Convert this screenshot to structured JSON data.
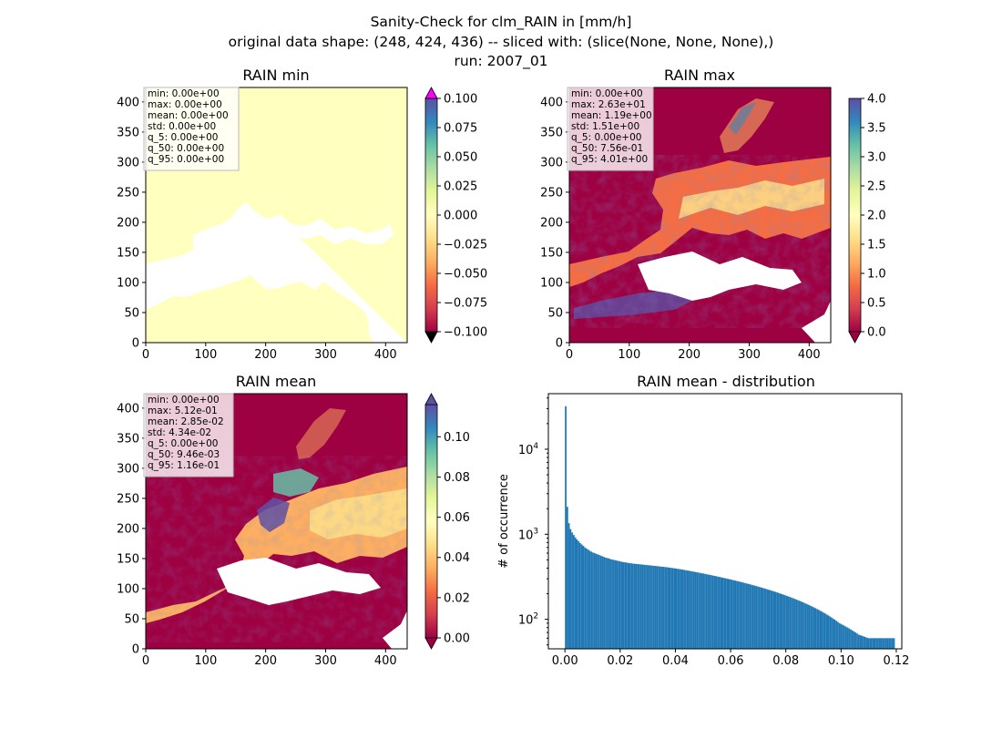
{
  "figure": {
    "title_lines": [
      "Sanity-Check for clm_RAIN in [mm/h]",
      "original data shape: (248, 424, 436) -- sliced with: (slice(None, None, None),)",
      "run: 2007_01"
    ]
  },
  "colors": {
    "land_min": "#ffffbf",
    "hist_bar": "#1f77b4",
    "colorbar_over": "#ff00ff",
    "colorbar_under": "#000000",
    "spectral": [
      "#9e0142",
      "#d53e4f",
      "#f46d43",
      "#fdae61",
      "#fee08b",
      "#ffffbf",
      "#e6f598",
      "#abdda4",
      "#66c2a5",
      "#3288bd",
      "#5e4fa2"
    ]
  },
  "chart_data": [
    {
      "type": "heatmap",
      "title": "RAIN min",
      "xlim": [
        0,
        436
      ],
      "ylim": [
        0,
        424
      ],
      "xticks": [
        "0",
        "100",
        "200",
        "300",
        "400"
      ],
      "yticks": [
        "0",
        "50",
        "100",
        "150",
        "200",
        "250",
        "300",
        "350",
        "400"
      ],
      "colorbar": {
        "min": -0.1,
        "max": 0.1,
        "extend": "both",
        "ticks": [
          "−0.100",
          "−0.075",
          "−0.050",
          "−0.025",
          "0.000",
          "0.025",
          "0.050",
          "0.075",
          "0.100"
        ]
      },
      "stats": [
        "min: 0.00e+00",
        "max: 0.00e+00",
        "mean: 0.00e+00",
        "std: 0.00e+00",
        "q_5: 0.00e+00",
        "q_50: 0.00e+00",
        "q_95: 0.00e+00"
      ]
    },
    {
      "type": "heatmap",
      "title": "RAIN max",
      "xlim": [
        0,
        436
      ],
      "ylim": [
        0,
        424
      ],
      "xticks": [
        "0",
        "100",
        "200",
        "300",
        "400"
      ],
      "yticks": [
        "0",
        "50",
        "100",
        "150",
        "200",
        "250",
        "300",
        "350",
        "400"
      ],
      "colorbar": {
        "min": 0.0,
        "max": 4.0,
        "extend": "min",
        "ticks": [
          "0.0",
          "0.5",
          "1.0",
          "1.5",
          "2.0",
          "2.5",
          "3.0",
          "3.5",
          "4.0"
        ]
      },
      "stats": [
        "min: 0.00e+00",
        "max: 2.63e+01",
        "mean: 1.19e+00",
        "std: 1.51e+00",
        "q_5: 0.00e+00",
        "q_50: 7.56e-01",
        "q_95: 4.01e+00"
      ]
    },
    {
      "type": "heatmap",
      "title": "RAIN mean",
      "xlim": [
        0,
        436
      ],
      "ylim": [
        0,
        424
      ],
      "xticks": [
        "0",
        "100",
        "200",
        "300",
        "400"
      ],
      "yticks": [
        "0",
        "50",
        "100",
        "150",
        "200",
        "250",
        "300",
        "350",
        "400"
      ],
      "colorbar": {
        "min": 0.0,
        "max": 0.116,
        "extend": "both",
        "ticks": [
          "0.00",
          "0.02",
          "0.04",
          "0.06",
          "0.08",
          "0.10"
        ]
      },
      "stats": [
        "min: 0.00e+00",
        "max: 5.12e-01",
        "mean: 2.85e-02",
        "std: 4.34e-02",
        "q_5: 0.00e+00",
        "q_50: 9.46e-03",
        "q_95: 1.16e-01"
      ]
    },
    {
      "type": "bar",
      "title": "RAIN mean - distribution",
      "xlabel": "",
      "ylabel": "# of occurrence",
      "xlim": [
        -0.006,
        0.122
      ],
      "ylim_log": [
        45,
        45000
      ],
      "xticks": [
        "0.00",
        "0.02",
        "0.04",
        "0.06",
        "0.08",
        "0.10",
        "0.12"
      ],
      "yticks": [
        "10^2",
        "10^3",
        "10^4"
      ],
      "bin_start": 0.0,
      "bin_width": 0.00058,
      "values": [
        32000,
        2100,
        1350,
        1150,
        1050,
        980,
        920,
        870,
        830,
        790,
        760,
        730,
        700,
        680,
        660,
        640,
        625,
        610,
        600,
        590,
        580,
        570,
        560,
        550,
        540,
        530,
        525,
        520,
        510,
        505,
        500,
        495,
        490,
        485,
        480,
        475,
        470,
        468,
        465,
        460,
        458,
        455,
        452,
        450,
        448,
        446,
        444,
        442,
        440,
        438,
        436,
        434,
        432,
        430,
        428,
        426,
        424,
        422,
        420,
        418,
        416,
        414,
        412,
        410,
        408,
        405,
        402,
        400,
        398,
        395,
        392,
        390,
        387,
        384,
        381,
        378,
        375,
        372,
        369,
        366,
        363,
        360,
        357,
        354,
        351,
        348,
        345,
        342,
        339,
        336,
        333,
        330,
        327,
        324,
        321,
        318,
        315,
        312,
        309,
        306,
        303,
        300,
        297,
        294,
        291,
        288,
        285,
        282,
        279,
        276,
        273,
        270,
        267,
        264,
        261,
        258,
        255,
        252,
        249,
        246,
        243,
        240,
        237,
        234,
        231,
        228,
        225,
        222,
        219,
        216,
        213,
        210,
        207,
        204,
        201,
        198,
        195,
        192,
        189,
        186,
        183,
        180,
        177,
        174,
        171,
        168,
        165,
        162,
        159,
        156,
        153,
        150,
        147,
        144,
        141,
        138,
        135,
        132,
        129,
        126,
        123,
        120,
        117,
        114,
        111,
        108,
        105,
        102,
        99,
        96,
        93,
        90,
        88,
        86,
        84,
        82,
        80,
        78,
        76,
        74,
        72,
        70,
        68,
        66,
        65,
        64,
        63,
        62,
        61,
        60,
        60,
        60,
        60,
        60,
        60,
        60,
        60,
        60,
        60,
        60,
        60,
        60,
        60,
        60,
        60,
        60
      ]
    }
  ]
}
